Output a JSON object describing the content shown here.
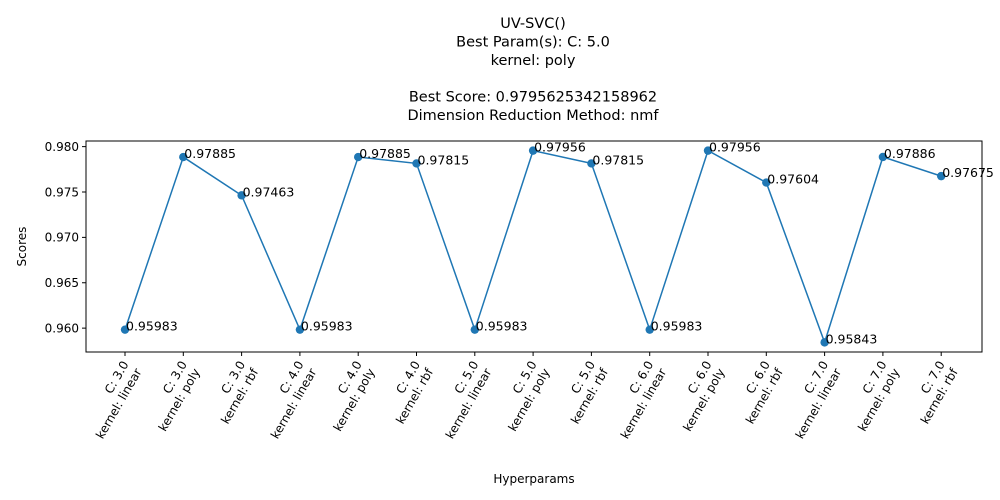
{
  "chart_data": {
    "type": "line",
    "title_lines": [
      "UV-SVC()",
      "Best Param(s): C: 5.0",
      "kernel: poly",
      "",
      "Best Score: 0.9795625342158962",
      "Dimension Reduction Method: nmf"
    ],
    "xlabel": "Hyperparams",
    "ylabel": "Scores",
    "categories": [
      [
        "C: 3.0",
        "kernel: linear"
      ],
      [
        "C: 3.0",
        "kernel: poly"
      ],
      [
        "C: 3.0",
        "kernel: rbf"
      ],
      [
        "C: 4.0",
        "kernel: linear"
      ],
      [
        "C: 4.0",
        "kernel: poly"
      ],
      [
        "C: 4.0",
        "kernel: rbf"
      ],
      [
        "C: 5.0",
        "kernel: linear"
      ],
      [
        "C: 5.0",
        "kernel: poly"
      ],
      [
        "C: 5.0",
        "kernel: rbf"
      ],
      [
        "C: 6.0",
        "kernel: linear"
      ],
      [
        "C: 6.0",
        "kernel: poly"
      ],
      [
        "C: 6.0",
        "kernel: rbf"
      ],
      [
        "C: 7.0",
        "kernel: linear"
      ],
      [
        "C: 7.0",
        "kernel: poly"
      ],
      [
        "C: 7.0",
        "kernel: rbf"
      ]
    ],
    "values": [
      0.95983,
      0.97885,
      0.97463,
      0.95983,
      0.97885,
      0.97815,
      0.95983,
      0.97956,
      0.97815,
      0.95983,
      0.97956,
      0.97604,
      0.95843,
      0.97886,
      0.97675
    ],
    "data_labels": [
      "0.95983",
      "0.97885",
      "0.97463",
      "0.95983",
      "0.97885",
      "0.97815",
      "0.95983",
      "0.97956",
      "0.97815",
      "0.95983",
      "0.97956",
      "0.97604",
      "0.95843",
      "0.97886",
      "0.97675"
    ],
    "yticks": [
      0.96,
      0.965,
      0.97,
      0.975,
      0.98
    ],
    "ytick_labels": [
      "0.960",
      "0.965",
      "0.970",
      "0.975",
      "0.980"
    ],
    "ylim": [
      0.95737,
      0.98062
    ],
    "grid": false,
    "line_color": "#1f77b4"
  }
}
